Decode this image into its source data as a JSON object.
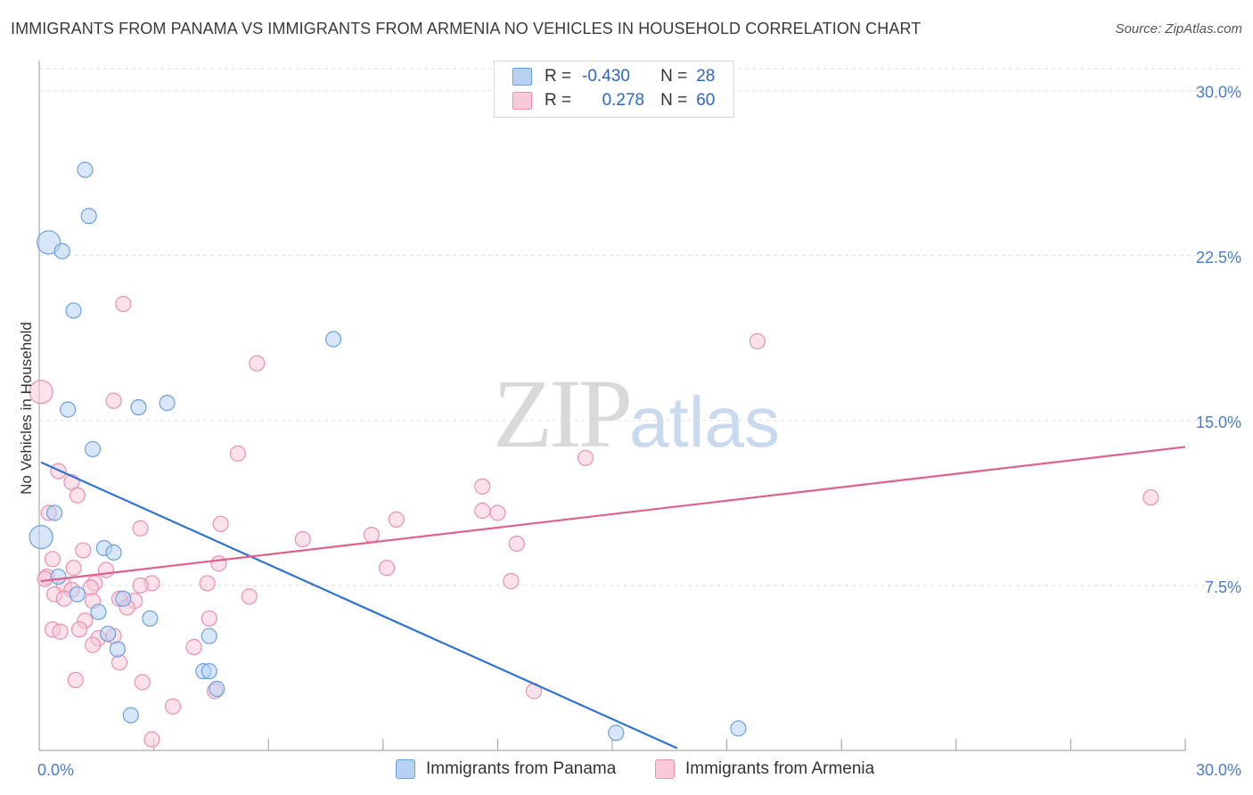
{
  "header": {
    "title": "IMMIGRANTS FROM PANAMA VS IMMIGRANTS FROM ARMENIA NO VEHICLES IN HOUSEHOLD CORRELATION CHART",
    "source": "Source: ZipAtlas.com"
  },
  "watermark": {
    "zip": "ZIP",
    "atlas": "atlas"
  },
  "stats_legend": {
    "rows": [
      {
        "r_label": "R =",
        "r_value": "-0.430",
        "n_label": "N =",
        "n_value": "28"
      },
      {
        "r_label": "R =",
        "r_value": "0.278",
        "n_label": "N =",
        "n_value": "60"
      }
    ]
  },
  "colors": {
    "panama_fill": "#b7d1f3",
    "panama_stroke": "#6b9fe0",
    "panama_line": "#2f72d2",
    "armenia_fill": "#f8c9d8",
    "armenia_stroke": "#eb8fae",
    "armenia_line": "#e2608d",
    "grid": "#dddddd",
    "tick_text": "#4a7cc9"
  },
  "chart_data": {
    "type": "scatter",
    "title": "IMMIGRANTS FROM PANAMA VS IMMIGRANTS FROM ARMENIA NO VEHICLES IN HOUSEHOLD CORRELATION CHART",
    "xlabel": "",
    "ylabel": "No Vehicles in Household",
    "xlim": [
      0,
      30
    ],
    "ylim": [
      0,
      31
    ],
    "x_tick_labels": [
      {
        "value": 0,
        "label": "0.0%"
      },
      {
        "value": 30,
        "label": "30.0%"
      }
    ],
    "x_minor_ticks": [
      3,
      6,
      9,
      12,
      15,
      18,
      21,
      24,
      27,
      30
    ],
    "y_ticks": [
      {
        "value": 7.5,
        "label": "7.5%"
      },
      {
        "value": 15.0,
        "label": "15.0%"
      },
      {
        "value": 22.5,
        "label": "22.5%"
      },
      {
        "value": 30.0,
        "label": "30.0%"
      }
    ],
    "grid": true,
    "series": [
      {
        "name": "Immigrants from Panama",
        "R": -0.43,
        "N": 28,
        "trend": {
          "x": [
            0.05,
            16.7
          ],
          "y": [
            13.1,
            0.1
          ]
        },
        "points": [
          {
            "x": 1.2,
            "y": 26.4
          },
          {
            "x": 1.3,
            "y": 24.3
          },
          {
            "x": 0.25,
            "y": 23.1,
            "big": true
          },
          {
            "x": 0.6,
            "y": 22.7
          },
          {
            "x": 0.9,
            "y": 20.0
          },
          {
            "x": 7.7,
            "y": 18.7
          },
          {
            "x": 0.75,
            "y": 15.5
          },
          {
            "x": 2.6,
            "y": 15.6
          },
          {
            "x": 3.35,
            "y": 15.8
          },
          {
            "x": 1.4,
            "y": 13.7
          },
          {
            "x": 0.4,
            "y": 10.8
          },
          {
            "x": 0.05,
            "y": 9.7,
            "big": true
          },
          {
            "x": 1.7,
            "y": 9.2
          },
          {
            "x": 1.95,
            "y": 9.0
          },
          {
            "x": 0.5,
            "y": 7.9
          },
          {
            "x": 1.0,
            "y": 7.1
          },
          {
            "x": 2.2,
            "y": 6.9
          },
          {
            "x": 1.55,
            "y": 6.3
          },
          {
            "x": 2.9,
            "y": 6.0
          },
          {
            "x": 1.8,
            "y": 5.3
          },
          {
            "x": 4.45,
            "y": 5.2
          },
          {
            "x": 2.05,
            "y": 4.6
          },
          {
            "x": 4.3,
            "y": 3.6
          },
          {
            "x": 4.45,
            "y": 3.6
          },
          {
            "x": 4.65,
            "y": 2.8
          },
          {
            "x": 2.4,
            "y": 1.6
          },
          {
            "x": 15.1,
            "y": 0.8
          },
          {
            "x": 18.3,
            "y": 1.0
          }
        ]
      },
      {
        "name": "Immigrants from Armenia",
        "R": 0.278,
        "N": 60,
        "trend": {
          "x": [
            0.05,
            30.0
          ],
          "y": [
            7.7,
            13.8
          ]
        },
        "points": [
          {
            "x": 2.2,
            "y": 20.3
          },
          {
            "x": 18.8,
            "y": 18.6
          },
          {
            "x": 5.7,
            "y": 17.6
          },
          {
            "x": 0.05,
            "y": 16.3,
            "big": true
          },
          {
            "x": 1.95,
            "y": 15.9
          },
          {
            "x": 5.2,
            "y": 13.5
          },
          {
            "x": 14.3,
            "y": 13.3
          },
          {
            "x": 0.5,
            "y": 12.7
          },
          {
            "x": 0.85,
            "y": 12.2
          },
          {
            "x": 11.6,
            "y": 12.0
          },
          {
            "x": 1.0,
            "y": 11.6
          },
          {
            "x": 29.1,
            "y": 11.5
          },
          {
            "x": 0.25,
            "y": 10.8
          },
          {
            "x": 11.6,
            "y": 10.9
          },
          {
            "x": 12.0,
            "y": 10.8
          },
          {
            "x": 9.35,
            "y": 10.5
          },
          {
            "x": 4.75,
            "y": 10.3
          },
          {
            "x": 2.65,
            "y": 10.1
          },
          {
            "x": 8.7,
            "y": 9.8
          },
          {
            "x": 6.9,
            "y": 9.6
          },
          {
            "x": 12.5,
            "y": 9.4
          },
          {
            "x": 1.15,
            "y": 9.1
          },
          {
            "x": 0.35,
            "y": 8.7
          },
          {
            "x": 4.7,
            "y": 8.5
          },
          {
            "x": 9.1,
            "y": 8.3
          },
          {
            "x": 0.9,
            "y": 8.3
          },
          {
            "x": 1.75,
            "y": 8.2
          },
          {
            "x": 0.2,
            "y": 7.9
          },
          {
            "x": 0.15,
            "y": 7.8
          },
          {
            "x": 12.35,
            "y": 7.7
          },
          {
            "x": 4.4,
            "y": 7.6
          },
          {
            "x": 2.95,
            "y": 7.6
          },
          {
            "x": 1.45,
            "y": 7.6
          },
          {
            "x": 0.65,
            "y": 7.5
          },
          {
            "x": 1.35,
            "y": 7.4
          },
          {
            "x": 2.65,
            "y": 7.5
          },
          {
            "x": 0.85,
            "y": 7.3
          },
          {
            "x": 0.4,
            "y": 7.1
          },
          {
            "x": 0.65,
            "y": 6.9
          },
          {
            "x": 2.1,
            "y": 6.9
          },
          {
            "x": 2.5,
            "y": 6.8
          },
          {
            "x": 5.5,
            "y": 7.0
          },
          {
            "x": 1.4,
            "y": 6.8
          },
          {
            "x": 2.3,
            "y": 6.5
          },
          {
            "x": 4.45,
            "y": 6.0
          },
          {
            "x": 1.2,
            "y": 5.9
          },
          {
            "x": 0.35,
            "y": 5.5
          },
          {
            "x": 0.55,
            "y": 5.4
          },
          {
            "x": 1.05,
            "y": 5.5
          },
          {
            "x": 1.55,
            "y": 5.1
          },
          {
            "x": 1.95,
            "y": 5.2
          },
          {
            "x": 1.4,
            "y": 4.8
          },
          {
            "x": 4.05,
            "y": 4.7
          },
          {
            "x": 2.1,
            "y": 4.0
          },
          {
            "x": 0.95,
            "y": 3.2
          },
          {
            "x": 2.7,
            "y": 3.1
          },
          {
            "x": 4.6,
            "y": 2.7
          },
          {
            "x": 12.95,
            "y": 2.7
          },
          {
            "x": 3.5,
            "y": 2.0
          },
          {
            "x": 2.95,
            "y": 0.5
          }
        ]
      }
    ]
  }
}
